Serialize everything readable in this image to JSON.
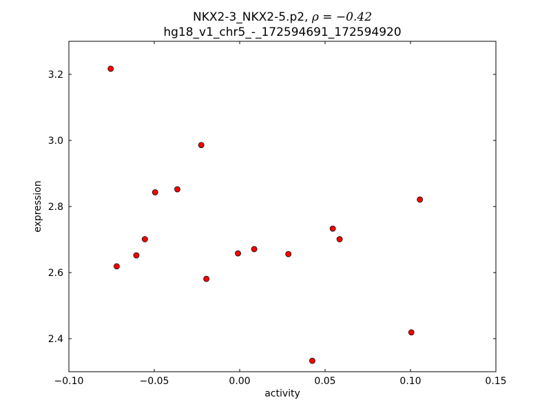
{
  "chart_data": {
    "type": "scatter",
    "title_line1_prefix": "NKX2-3_NKX2-5.p2, ",
    "title_rho_symbol": "ρ",
    "title_rho_value": " = −0.42",
    "title_line2": "hg18_v1_chr5_-_172594691_172594920",
    "xlabel": "activity",
    "ylabel": "expression",
    "xlim": [
      -0.1,
      0.15
    ],
    "ylim": [
      2.3,
      3.3
    ],
    "x_ticks": [
      {
        "value": -0.1,
        "label": "−0.10"
      },
      {
        "value": -0.05,
        "label": "−0.05"
      },
      {
        "value": 0.0,
        "label": "0.00"
      },
      {
        "value": 0.05,
        "label": "0.05"
      },
      {
        "value": 0.1,
        "label": "0.10"
      },
      {
        "value": 0.15,
        "label": "0.15"
      }
    ],
    "y_ticks": [
      {
        "value": 2.4,
        "label": "2.4"
      },
      {
        "value": 2.6,
        "label": "2.6"
      },
      {
        "value": 2.8,
        "label": "2.8"
      },
      {
        "value": 3.0,
        "label": "3.0"
      },
      {
        "value": 3.2,
        "label": "3.2"
      }
    ],
    "grid": false,
    "marker_color": "#ff0000",
    "marker_edge_color": "#000000",
    "points": [
      {
        "x": -0.0755,
        "y": 3.217
      },
      {
        "x": -0.072,
        "y": 2.619
      },
      {
        "x": -0.0605,
        "y": 2.652
      },
      {
        "x": -0.0555,
        "y": 2.701
      },
      {
        "x": -0.0495,
        "y": 2.843
      },
      {
        "x": -0.0365,
        "y": 2.852
      },
      {
        "x": -0.0225,
        "y": 2.986
      },
      {
        "x": -0.0195,
        "y": 2.581
      },
      {
        "x": -0.001,
        "y": 2.658
      },
      {
        "x": 0.0085,
        "y": 2.671
      },
      {
        "x": 0.0285,
        "y": 2.656
      },
      {
        "x": 0.0425,
        "y": 2.333
      },
      {
        "x": 0.0545,
        "y": 2.733
      },
      {
        "x": 0.0585,
        "y": 2.701
      },
      {
        "x": 0.1005,
        "y": 2.419
      },
      {
        "x": 0.1055,
        "y": 2.821
      }
    ]
  }
}
